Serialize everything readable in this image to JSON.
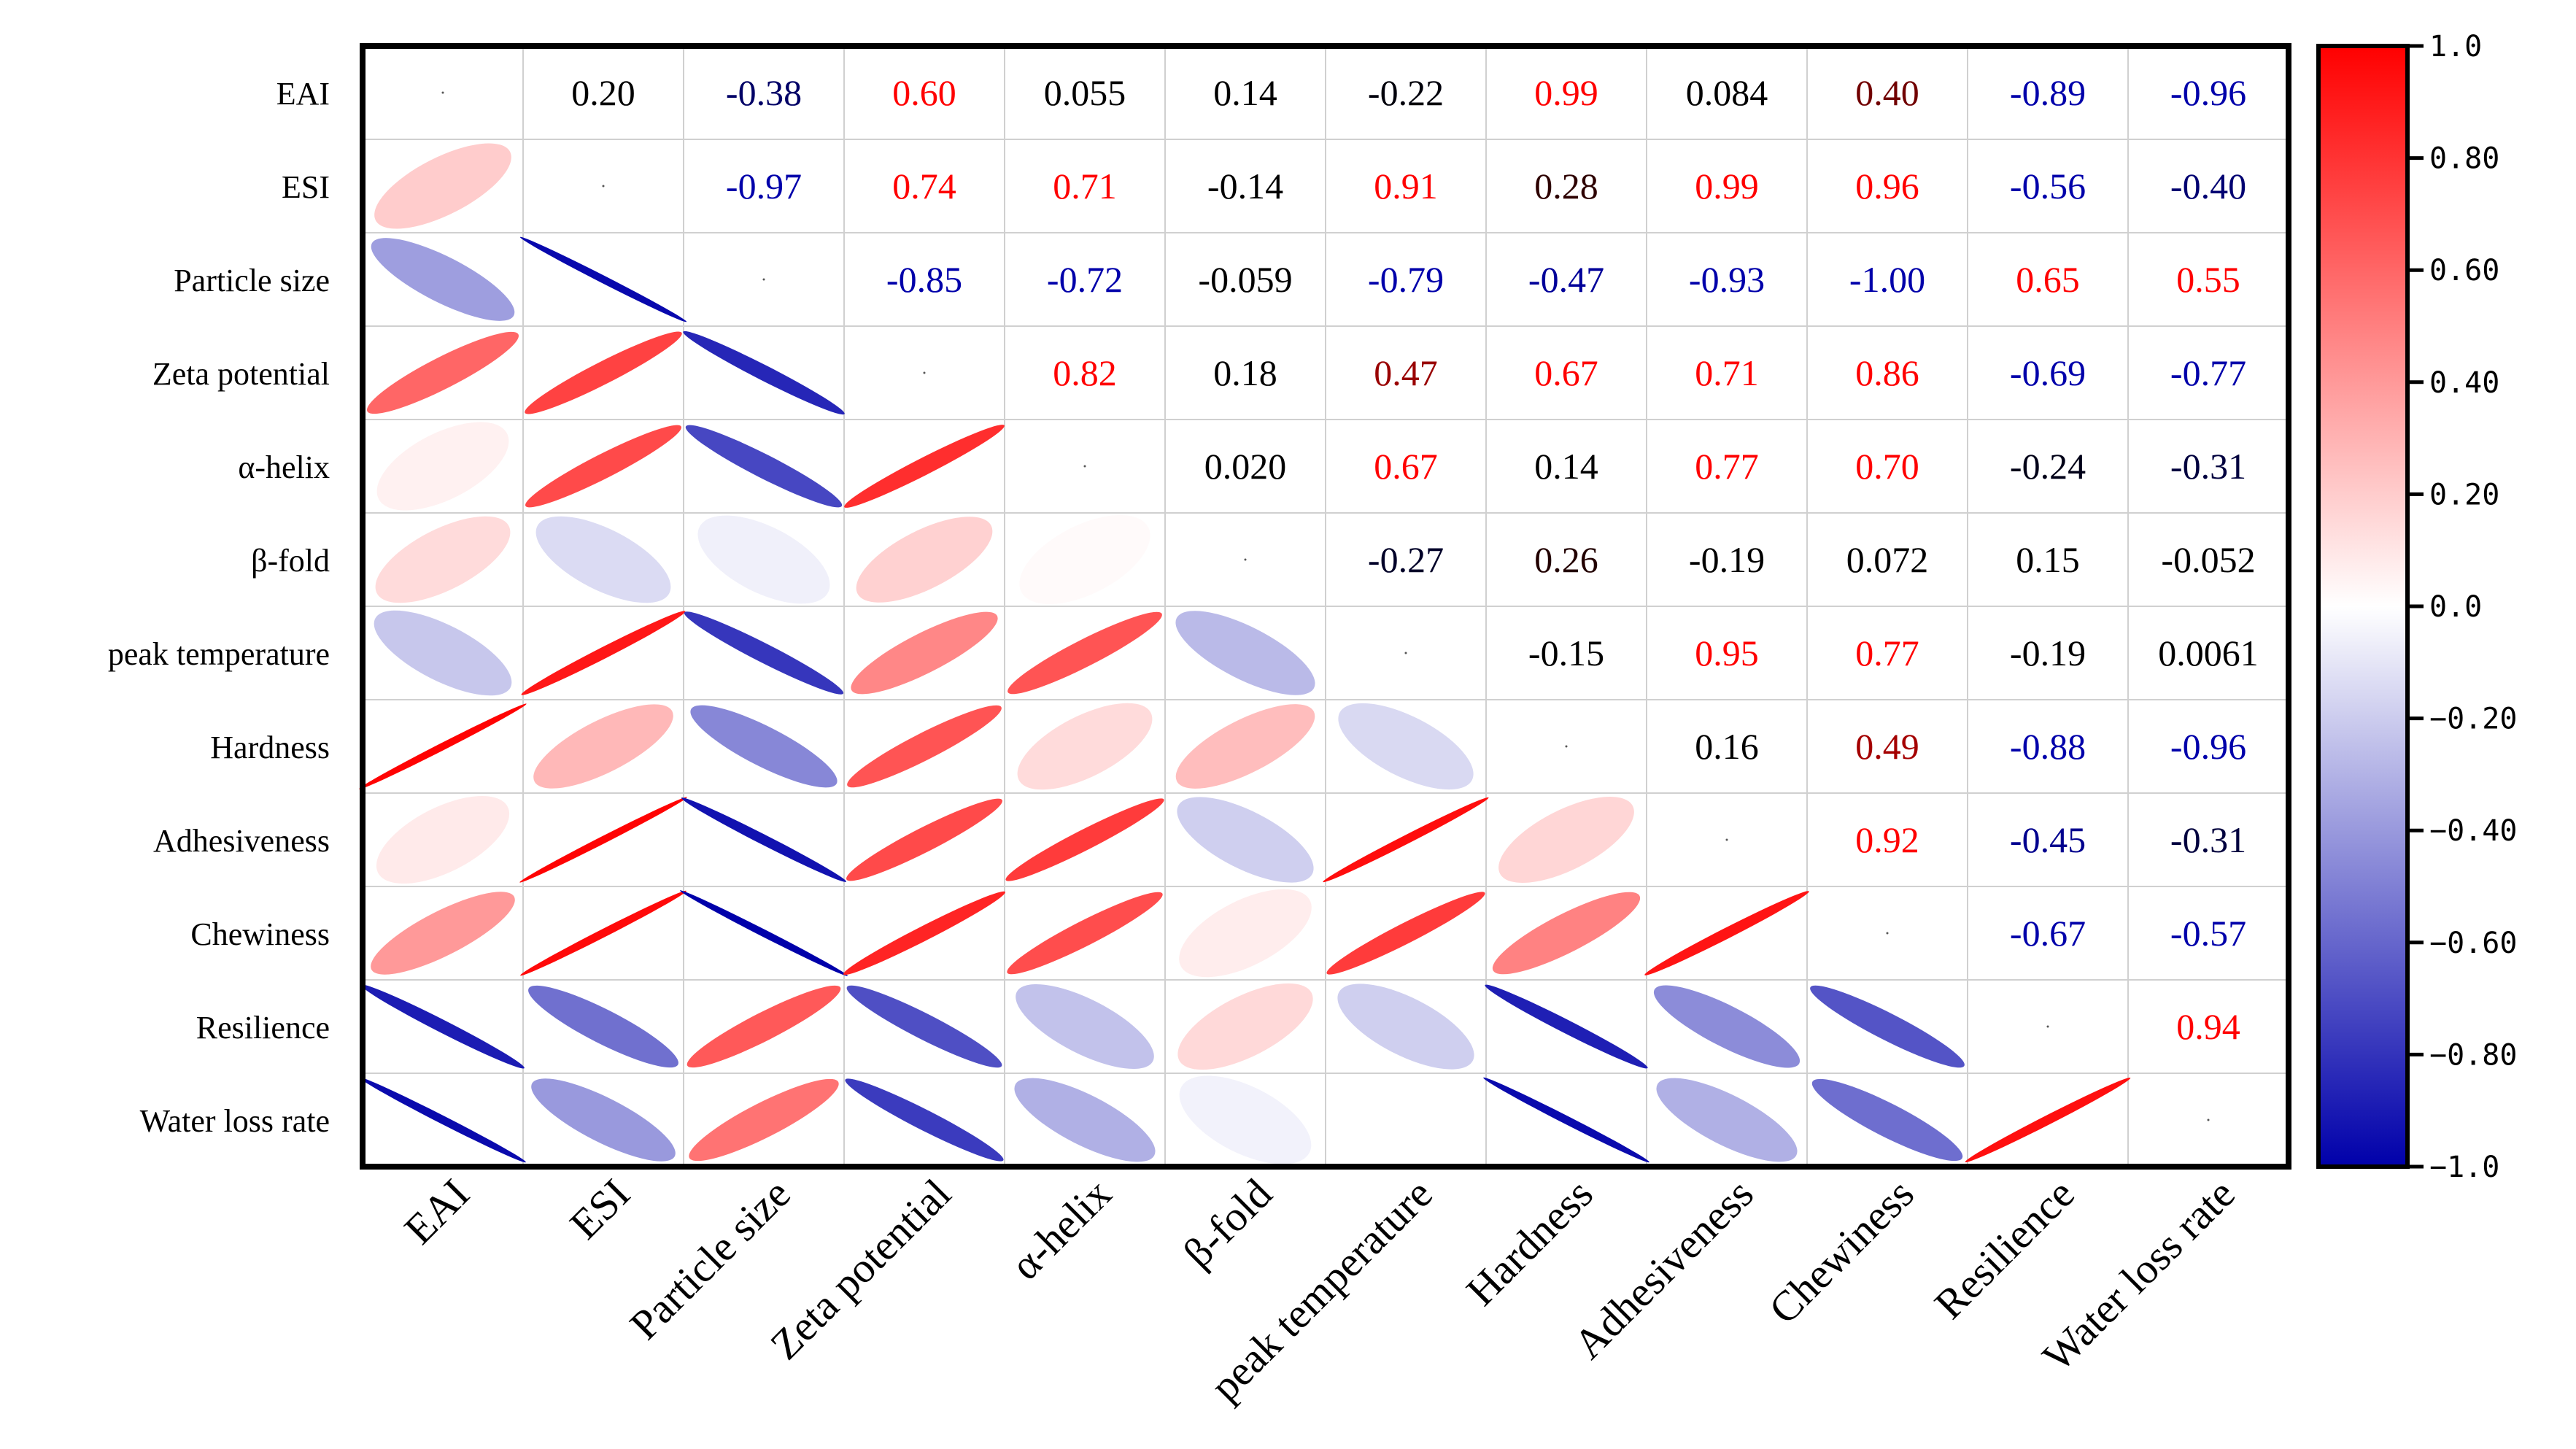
{
  "chart_data": {
    "type": "heatmap",
    "variables": [
      "EAI",
      "ESI",
      "Particle size",
      "Zeta potential",
      "α-helix",
      "β-fold",
      "peak temperature",
      "Hardness",
      "Adhesiveness",
      "Chewiness",
      "Resilience",
      "Water loss rate"
    ],
    "x_tick_labels": [
      "EAI",
      "ESI",
      "Particle size",
      "Zeta potential",
      "α-helix",
      "β-fold",
      "peak temperature",
      "Hardness",
      "Adhesiveness",
      "Chewiness",
      "Resilience",
      "Water loss rate"
    ],
    "upper_labels": [
      [
        null,
        "0.20",
        "-0.38",
        "0.60",
        "0.055",
        "0.14",
        "-0.22",
        "0.99",
        "0.084",
        "0.40",
        "-0.89",
        "-0.96"
      ],
      [
        null,
        null,
        "-0.97",
        "0.74",
        "0.71",
        "-0.14",
        "0.91",
        "0.28",
        "0.99",
        "0.96",
        "-0.56",
        "-0.40"
      ],
      [
        null,
        null,
        null,
        "-0.85",
        "-0.72",
        "-0.059",
        "-0.79",
        "-0.47",
        "-0.93",
        "-1.00",
        "0.65",
        "0.55"
      ],
      [
        null,
        null,
        null,
        null,
        "0.82",
        "0.18",
        "0.47",
        "0.67",
        "0.71",
        "0.86",
        "-0.69",
        "-0.77"
      ],
      [
        null,
        null,
        null,
        null,
        null,
        "0.020",
        "0.67",
        "0.14",
        "0.77",
        "0.70",
        "-0.24",
        "-0.31"
      ],
      [
        null,
        null,
        null,
        null,
        null,
        null,
        "-0.27",
        "0.26",
        "-0.19",
        "0.072",
        "0.15",
        "-0.052"
      ],
      [
        null,
        null,
        null,
        null,
        null,
        null,
        null,
        "-0.15",
        "0.95",
        "0.77",
        "-0.19",
        "0.0061"
      ],
      [
        null,
        null,
        null,
        null,
        null,
        null,
        null,
        null,
        "0.16",
        "0.49",
        "-0.88",
        "-0.96"
      ],
      [
        null,
        null,
        null,
        null,
        null,
        null,
        null,
        null,
        null,
        "0.92",
        "-0.45",
        "-0.31"
      ],
      [
        null,
        null,
        null,
        null,
        null,
        null,
        null,
        null,
        null,
        null,
        "-0.67",
        "-0.57"
      ],
      [
        null,
        null,
        null,
        null,
        null,
        null,
        null,
        null,
        null,
        null,
        null,
        "0.94"
      ],
      [
        null,
        null,
        null,
        null,
        null,
        null,
        null,
        null,
        null,
        null,
        null,
        null
      ]
    ],
    "colorbar": {
      "min": -1.0,
      "max": 1.0,
      "tick_values": [
        1.0,
        0.8,
        0.6,
        0.4,
        0.2,
        0.0,
        -0.2,
        -0.4,
        -0.6,
        -0.8,
        -1.0
      ],
      "tick_labels": [
        "1.0",
        "0.80",
        "0.60",
        "0.40",
        "0.20",
        "0.0",
        "−0.20",
        "−0.40",
        "−0.60",
        "−0.80",
        "−1.0"
      ]
    },
    "colors": {
      "positive": "#ff0000",
      "negative": "#0000aa",
      "neutral": "#ffffff",
      "label_black": "#000000",
      "grid": "#d0d0d0",
      "frame": "#000000"
    }
  }
}
